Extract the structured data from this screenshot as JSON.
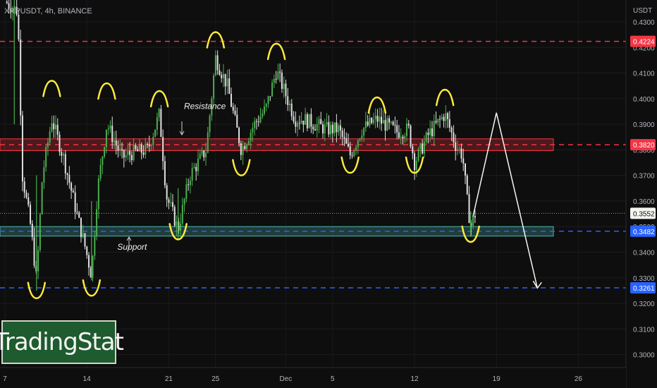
{
  "symbol_label": "XRPUSDT, 4h, BINANCE",
  "currency": "USDT",
  "brand": "TradingStat",
  "chart_data": {
    "type": "candlestick",
    "symbol": "XRPUSDT",
    "interval": "4h",
    "exchange": "BINANCE",
    "ylim": [
      0.297,
      0.441
    ],
    "y_ticks": [
      "0.4300",
      "0.4200",
      "0.4100",
      "0.4000",
      "0.3900",
      "0.3800",
      "0.3700",
      "0.3600",
      "0.3500",
      "0.3400",
      "0.3300",
      "0.3200",
      "0.3100",
      "0.3000"
    ],
    "x_ticks": [
      {
        "label": "7",
        "day": 0
      },
      {
        "label": "14",
        "day": 7
      },
      {
        "label": "21",
        "day": 14
      },
      {
        "label": "25",
        "day": 18
      },
      {
        "label": "Dec",
        "day": 24
      },
      {
        "label": "5",
        "day": 28
      },
      {
        "label": "12",
        "day": 35
      },
      {
        "label": "19",
        "day": 42
      },
      {
        "label": "26",
        "day": 49
      }
    ],
    "price_levels": [
      {
        "price": 0.4224,
        "label": "0.4224",
        "color": "#f23645",
        "style": "dashed"
      },
      {
        "price": 0.382,
        "label": "0.3820",
        "color": "#f23645",
        "style": "dashed"
      },
      {
        "price": 0.3482,
        "label": "0.3482",
        "color": "#2962ff",
        "style": "dashed"
      },
      {
        "price": 0.3261,
        "label": "0.3261",
        "color": "#2962ff",
        "style": "dashed"
      }
    ],
    "current_price": {
      "price": 0.3552,
      "label": "0.3552"
    },
    "zones": [
      {
        "name": "resistance",
        "low": 0.3797,
        "high": 0.3843,
        "color": "#f23645"
      },
      {
        "name": "support",
        "low": 0.3463,
        "high": 0.35,
        "color": "#4db6ac"
      }
    ],
    "annotations": [
      {
        "text": "Resistance",
        "day": 15.3,
        "price": 0.396
      },
      {
        "text": "Support",
        "day": 9.6,
        "price": 0.341
      }
    ],
    "projection": [
      {
        "day": 40.0,
        "price": 0.354
      },
      {
        "day": 42.0,
        "price": 0.3945
      },
      {
        "day": 45.5,
        "price": 0.326
      }
    ],
    "swing_markers": [
      {
        "day": 4.0,
        "price": 0.407,
        "kind": "top"
      },
      {
        "day": 8.7,
        "price": 0.406,
        "kind": "top"
      },
      {
        "day": 13.2,
        "price": 0.403,
        "kind": "top"
      },
      {
        "day": 18.0,
        "price": 0.426,
        "kind": "top"
      },
      {
        "day": 23.2,
        "price": 0.4215,
        "kind": "top"
      },
      {
        "day": 31.8,
        "price": 0.4005,
        "kind": "top"
      },
      {
        "day": 37.6,
        "price": 0.4035,
        "kind": "top"
      },
      {
        "day": 2.7,
        "price": 0.322,
        "kind": "bottom"
      },
      {
        "day": 7.4,
        "price": 0.323,
        "kind": "bottom"
      },
      {
        "day": 14.8,
        "price": 0.345,
        "kind": "bottom"
      },
      {
        "day": 20.2,
        "price": 0.37,
        "kind": "bottom"
      },
      {
        "day": 29.5,
        "price": 0.371,
        "kind": "bottom"
      },
      {
        "day": 35.0,
        "price": 0.371,
        "kind": "bottom"
      },
      {
        "day": 39.8,
        "price": 0.344,
        "kind": "bottom"
      }
    ],
    "trend_path": [
      [
        0.0,
        0.438
      ],
      [
        1.1,
        0.434
      ],
      [
        1.5,
        0.37
      ],
      [
        2.2,
        0.35
      ],
      [
        2.7,
        0.329
      ],
      [
        3.2,
        0.37
      ],
      [
        4.0,
        0.392
      ],
      [
        5.0,
        0.377
      ],
      [
        6.2,
        0.354
      ],
      [
        6.8,
        0.343
      ],
      [
        7.4,
        0.331
      ],
      [
        7.9,
        0.364
      ],
      [
        8.7,
        0.39
      ],
      [
        10.0,
        0.377
      ],
      [
        11.0,
        0.379
      ],
      [
        12.2,
        0.38
      ],
      [
        13.2,
        0.394
      ],
      [
        13.8,
        0.362
      ],
      [
        14.8,
        0.349
      ],
      [
        15.8,
        0.37
      ],
      [
        17.2,
        0.38
      ],
      [
        18.0,
        0.416
      ],
      [
        19.0,
        0.405
      ],
      [
        20.2,
        0.38
      ],
      [
        21.3,
        0.39
      ],
      [
        22.3,
        0.396
      ],
      [
        23.2,
        0.411
      ],
      [
        24.8,
        0.392
      ],
      [
        25.5,
        0.392
      ],
      [
        27.5,
        0.388
      ],
      [
        28.5,
        0.388
      ],
      [
        29.5,
        0.378
      ],
      [
        30.5,
        0.388
      ],
      [
        31.8,
        0.392
      ],
      [
        33.5,
        0.387
      ],
      [
        34.5,
        0.388
      ],
      [
        35.0,
        0.375
      ],
      [
        36.2,
        0.386
      ],
      [
        37.6,
        0.394
      ],
      [
        38.5,
        0.382
      ],
      [
        39.1,
        0.378
      ],
      [
        39.5,
        0.36
      ],
      [
        39.8,
        0.35
      ],
      [
        40.2,
        0.3552
      ]
    ]
  }
}
